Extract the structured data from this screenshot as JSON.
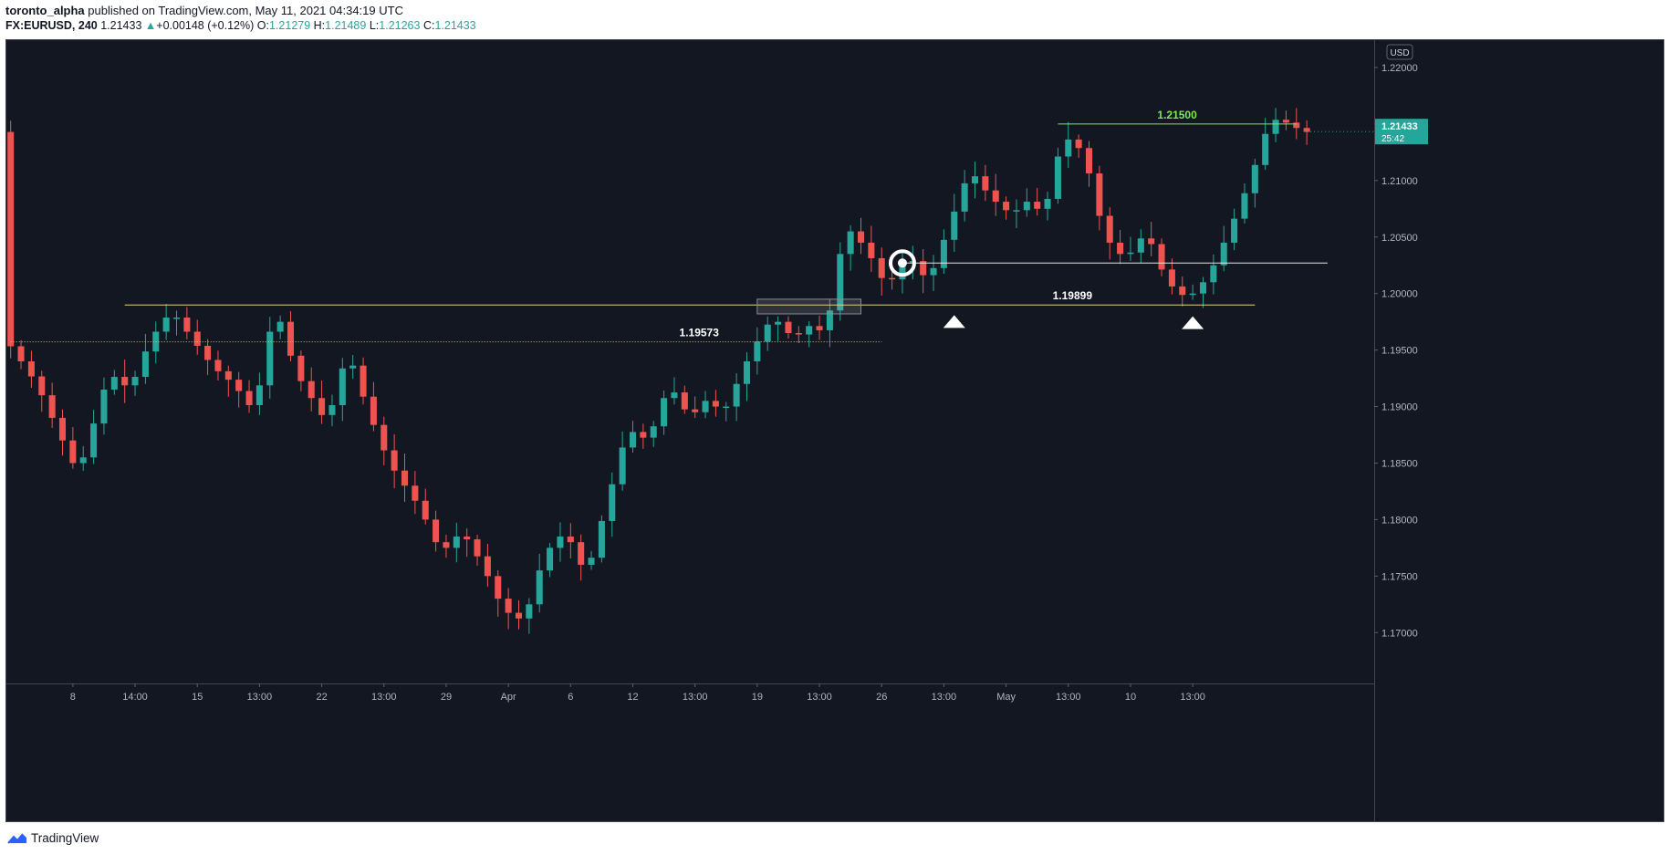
{
  "header": {
    "author": "toronto_alpha",
    "published": " published on TradingView.com, May 11, 2021 04:34:19 UTC",
    "symbol": "FX:EURUSD, 240",
    "last": "1.21433",
    "change": "+0.00148 (+0.12%)",
    "o_label": "O:",
    "o_value": "1.21279",
    "h_label": "H:",
    "h_value": "1.21489",
    "l_label": "L:",
    "l_value": "1.21263",
    "c_label": "C:",
    "c_value": "1.21433"
  },
  "footer": {
    "brand": "TradingView"
  },
  "chart_data": {
    "type": "candlestick",
    "currency": "USD",
    "colors": {
      "up": "#26a69a",
      "down": "#ef5350",
      "background": "#131722",
      "grid": "#363a45"
    },
    "ylim": [
      1.1655,
      1.2225
    ],
    "y_ticks": [
      "1.22000",
      "1.21500",
      "1.21000",
      "1.20500",
      "1.20000",
      "1.19500",
      "1.19000",
      "1.18500",
      "1.18000",
      "1.17500",
      "1.17000"
    ],
    "x_ticks": [
      {
        "t": 6,
        "label": "8"
      },
      {
        "t": 12,
        "label": "14:00"
      },
      {
        "t": 18,
        "label": "15"
      },
      {
        "t": 24,
        "label": "13:00"
      },
      {
        "t": 30,
        "label": "22"
      },
      {
        "t": 36,
        "label": "13:00"
      },
      {
        "t": 42,
        "label": "29"
      },
      {
        "t": 48,
        "label": "Apr"
      },
      {
        "t": 54,
        "label": "6"
      },
      {
        "t": 60,
        "label": "12"
      },
      {
        "t": 66,
        "label": "13:00"
      },
      {
        "t": 72,
        "label": "19"
      },
      {
        "t": 78,
        "label": "13:00"
      },
      {
        "t": 84,
        "label": "26"
      },
      {
        "t": 90,
        "label": "13:00"
      },
      {
        "t": 96,
        "label": "May"
      },
      {
        "t": 102,
        "label": "13:00"
      },
      {
        "t": 108,
        "label": "10"
      },
      {
        "t": 114,
        "label": "13:00"
      }
    ],
    "waypoints": [
      [
        0,
        1.196
      ],
      [
        3,
        1.192
      ],
      [
        5,
        1.188
      ],
      [
        7,
        1.184
      ],
      [
        8,
        1.187
      ],
      [
        10,
        1.193
      ],
      [
        12,
        1.1915
      ],
      [
        14,
        1.196
      ],
      [
        16,
        1.1985
      ],
      [
        18,
        1.196
      ],
      [
        20,
        1.1935
      ],
      [
        22,
        1.192
      ],
      [
        24,
        1.1895
      ],
      [
        26,
        1.199
      ],
      [
        28,
        1.193
      ],
      [
        31,
        1.1885
      ],
      [
        33,
        1.195
      ],
      [
        35,
        1.1895
      ],
      [
        37,
        1.185
      ],
      [
        40,
        1.181
      ],
      [
        42,
        1.177
      ],
      [
        44,
        1.179
      ],
      [
        46,
        1.176
      ],
      [
        48,
        1.172
      ],
      [
        50,
        1.171
      ],
      [
        52,
        1.177
      ],
      [
        54,
        1.179
      ],
      [
        56,
        1.175
      ],
      [
        58,
        1.1815
      ],
      [
        60,
        1.188
      ],
      [
        62,
        1.187
      ],
      [
        64,
        1.192
      ],
      [
        66,
        1.189
      ],
      [
        68,
        1.191
      ],
      [
        69,
        1.189
      ],
      [
        72,
        1.195
      ],
      [
        74,
        1.198
      ],
      [
        76,
        1.196
      ],
      [
        78,
        1.1975
      ],
      [
        79,
        1.196
      ],
      [
        81,
        1.206
      ],
      [
        83,
        1.204
      ],
      [
        85,
        1.2005
      ],
      [
        87,
        1.2035
      ],
      [
        89,
        1.201
      ],
      [
        91,
        1.206
      ],
      [
        93,
        1.211
      ],
      [
        95,
        1.2085
      ],
      [
        97,
        1.207
      ],
      [
        99,
        1.2085
      ],
      [
        100,
        1.2065
      ],
      [
        102,
        1.214
      ],
      [
        104,
        1.2125
      ],
      [
        106,
        1.205
      ],
      [
        108,
        1.203
      ],
      [
        110,
        1.2055
      ],
      [
        112,
        1.201
      ],
      [
        114,
        1.1995
      ],
      [
        116,
        1.2015
      ],
      [
        118,
        1.2055
      ],
      [
        120,
        1.21
      ],
      [
        122,
        1.2155
      ],
      [
        124,
        1.215
      ],
      [
        125,
        1.2143
      ]
    ],
    "x_max": 132,
    "current_price": "1.21433",
    "countdown": "25:42",
    "annotations": [
      {
        "type": "hline",
        "price": 1.215,
        "from": 101,
        "to": 124,
        "color": "#7ee84c",
        "label": "1.21500"
      },
      {
        "type": "hline",
        "price": 1.2027,
        "from": 86,
        "to": 127,
        "color": "#e6e6e6",
        "label": ""
      },
      {
        "type": "hline",
        "price": 1.19899,
        "from": 11,
        "to": 120,
        "color": "#e8d27a",
        "label": "1.19899"
      },
      {
        "type": "hline",
        "price": 1.19573,
        "from": 0,
        "to": 84,
        "color": "#d9c46e",
        "dotted": true,
        "label": "1.19573"
      },
      {
        "type": "box",
        "from": 72,
        "to": 82,
        "top": 1.1995,
        "bottom": 1.1982
      },
      {
        "type": "target",
        "t": 86,
        "price": 1.2027
      },
      {
        "type": "arrow-up",
        "t": 91,
        "price": 1.1976
      },
      {
        "type": "arrow-up",
        "t": 114,
        "price": 1.1975
      }
    ]
  }
}
